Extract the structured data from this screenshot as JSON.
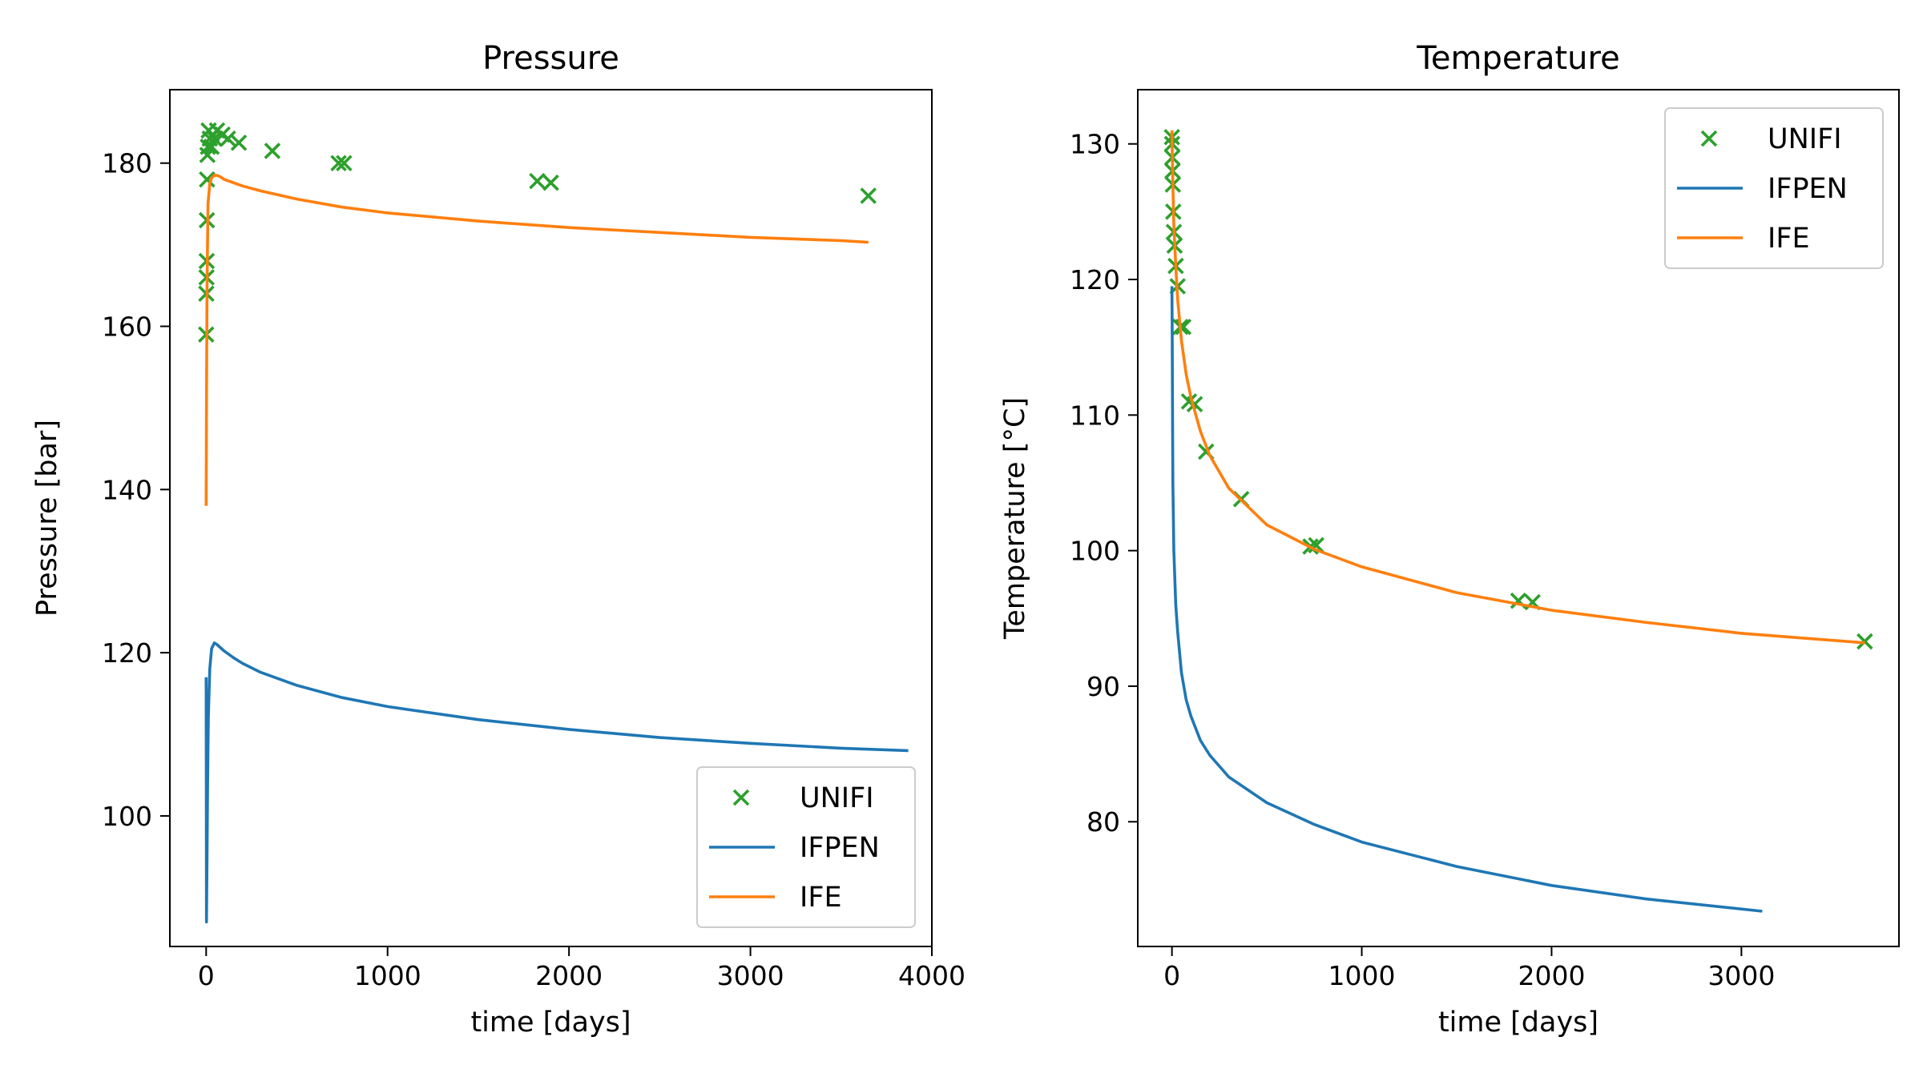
{
  "colors": {
    "UNIFI": "#2ca02c",
    "IFPEN": "#1f77b4",
    "IFE": "#ff7f0e",
    "legend_border": "#cccccc"
  },
  "chart_data": [
    {
      "type": "line",
      "title": "Pressure",
      "xlabel": "time [days]",
      "ylabel": "Pressure [bar]",
      "xlim": [
        -200,
        4000
      ],
      "ylim": [
        84,
        189
      ],
      "xticks": [
        0,
        1000,
        2000,
        3000,
        4000
      ],
      "yticks": [
        100,
        120,
        140,
        160,
        180
      ],
      "xtick_labels": [
        "0",
        "1000",
        "2000",
        "3000",
        "4000"
      ],
      "ytick_labels": [
        "100",
        "120",
        "140",
        "160",
        "180"
      ],
      "grid": false,
      "legend": {
        "position": "lower-right",
        "entries": [
          {
            "series": "UNIFI",
            "label": "UNIFI",
            "marker": "x"
          },
          {
            "series": "IFPEN",
            "label": "IFPEN",
            "marker": "line"
          },
          {
            "series": "IFE",
            "label": "IFE",
            "marker": "line"
          }
        ]
      },
      "series": [
        {
          "name": "UNIFI",
          "kind": "scatter",
          "x": [
            0,
            1,
            2,
            3,
            4,
            5,
            7,
            10,
            14,
            20,
            30,
            45,
            60,
            90,
            120,
            180,
            365,
            730,
            760,
            1825,
            1900,
            3650
          ],
          "y": [
            159,
            164,
            166,
            168,
            173,
            178,
            181,
            182,
            184,
            183,
            182,
            183,
            184,
            183.5,
            183,
            182.5,
            181.5,
            180,
            180,
            177.8,
            177.6,
            176
          ]
        },
        {
          "name": "IFPEN",
          "kind": "line",
          "x": [
            0,
            2,
            5,
            8,
            12,
            20,
            30,
            45,
            60,
            100,
            150,
            200,
            300,
            500,
            750,
            1000,
            1500,
            2000,
            2500,
            3000,
            3500,
            3870
          ],
          "y": [
            117,
            87,
            95,
            104,
            112,
            118,
            120.5,
            121.2,
            121,
            120.2,
            119.4,
            118.7,
            117.6,
            116,
            114.5,
            113.4,
            111.8,
            110.6,
            109.6,
            108.9,
            108.3,
            108
          ]
        },
        {
          "name": "IFE",
          "kind": "line",
          "x": [
            0,
            2,
            5,
            10,
            20,
            30,
            45,
            60,
            80,
            100,
            150,
            200,
            300,
            500,
            750,
            1000,
            1500,
            2000,
            2500,
            3000,
            3500,
            3650
          ],
          "y": [
            138,
            150,
            165,
            175,
            177.5,
            178.2,
            178.5,
            178.5,
            178.3,
            178,
            177.6,
            177.2,
            176.6,
            175.6,
            174.6,
            173.9,
            172.9,
            172.1,
            171.5,
            170.9,
            170.5,
            170.3
          ]
        }
      ]
    },
    {
      "type": "line",
      "title": "Temperature",
      "xlabel": "time [days]",
      "ylabel": "Temperature [°C]",
      "xlim": [
        -180,
        3830
      ],
      "ylim": [
        70.8,
        134
      ],
      "xticks": [
        0,
        1000,
        2000,
        3000
      ],
      "yticks": [
        80,
        90,
        100,
        110,
        120,
        130
      ],
      "xtick_labels": [
        "0",
        "1000",
        "2000",
        "3000"
      ],
      "ytick_labels": [
        "80",
        "90",
        "100",
        "110",
        "120",
        "130"
      ],
      "grid": false,
      "legend": {
        "position": "upper-right",
        "entries": [
          {
            "series": "UNIFI",
            "label": "UNIFI",
            "marker": "x"
          },
          {
            "series": "IFPEN",
            "label": "IFPEN",
            "marker": "line"
          },
          {
            "series": "IFE",
            "label": "IFE",
            "marker": "line"
          }
        ]
      },
      "series": [
        {
          "name": "UNIFI",
          "kind": "scatter",
          "x": [
            0,
            1,
            2,
            3,
            5,
            7,
            10,
            14,
            20,
            30,
            45,
            60,
            90,
            120,
            180,
            365,
            730,
            760,
            1825,
            1900,
            3650
          ],
          "y": [
            130.5,
            130,
            129,
            128,
            127,
            125,
            123.5,
            122.5,
            121,
            119.5,
            116.5,
            116.5,
            111,
            110.8,
            107.3,
            103.8,
            100.3,
            100.4,
            96.3,
            96.2,
            93.3
          ]
        },
        {
          "name": "IFPEN",
          "kind": "line",
          "x": [
            0,
            1,
            3,
            5,
            10,
            20,
            30,
            50,
            75,
            100,
            150,
            200,
            300,
            500,
            750,
            1000,
            1500,
            2000,
            2500,
            3110
          ],
          "y": [
            119.5,
            117,
            110,
            105,
            100,
            96,
            94,
            91,
            89,
            87.8,
            86,
            84.9,
            83.3,
            81.4,
            79.8,
            78.5,
            76.7,
            75.3,
            74.3,
            73.4
          ]
        },
        {
          "name": "IFE",
          "kind": "line",
          "x": [
            0,
            5,
            10,
            20,
            30,
            50,
            75,
            100,
            150,
            200,
            300,
            500,
            750,
            1000,
            1500,
            2000,
            2500,
            3000,
            3650
          ],
          "y": [
            131,
            127,
            124,
            121,
            118.5,
            115.5,
            113,
            111.3,
            108.8,
            107,
            104.6,
            101.9,
            100.1,
            98.8,
            96.9,
            95.6,
            94.7,
            93.9,
            93.2
          ]
        }
      ]
    }
  ]
}
